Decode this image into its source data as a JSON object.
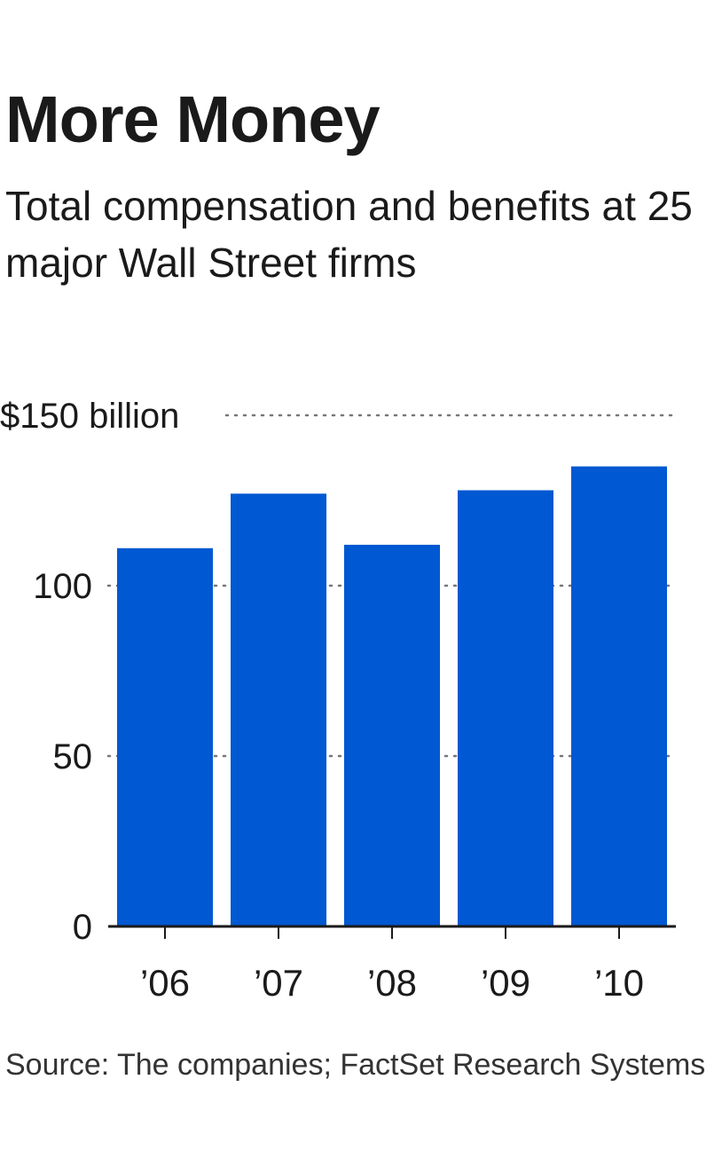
{
  "chart_data": {
    "type": "bar",
    "title": "More Money",
    "subtitle": "Total compensation and benefits at 25 major Wall Street firms",
    "categories": [
      "’06",
      "’07",
      "’08",
      "’09",
      "’10"
    ],
    "values": [
      111,
      127,
      112,
      128,
      135
    ],
    "ylim": [
      0,
      150
    ],
    "yticks": [
      0,
      50,
      100,
      150
    ],
    "ytick_labels": [
      "0",
      "50",
      "100",
      "$150 billion"
    ],
    "xlabel": "",
    "ylabel": "",
    "grid": true,
    "source": "Source: The companies; FactSet Research Systems"
  },
  "colors": {
    "bar": "#0058D2",
    "text": "#1a1a1a",
    "grid": "#777777",
    "axis": "#1a1a1a"
  }
}
